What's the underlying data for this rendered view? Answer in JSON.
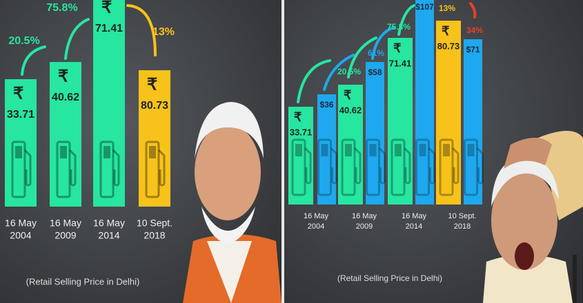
{
  "panels": [
    {
      "bars": [
        {
          "symbol": "₹",
          "price": 33.71,
          "date": [
            "16 May",
            "2004"
          ]
        },
        {
          "symbol": "₹",
          "price": 40.62,
          "date": [
            "16 May",
            "2009"
          ]
        },
        {
          "symbol": "₹",
          "price": 71.41,
          "date": [
            "16 May",
            "2014"
          ]
        },
        {
          "symbol": "₹",
          "price": 80.73,
          "date": [
            "10 Sept.",
            "2018"
          ]
        }
      ],
      "changes": [
        "20.5%",
        "75.8%",
        "13%"
      ],
      "caption": "(Retail Selling Price in Delhi)"
    },
    {
      "bars": [
        {
          "symbol": "₹",
          "price": 33.71,
          "date": [
            "16 May",
            "2004"
          ],
          "crude": "$36"
        },
        {
          "symbol": "₹",
          "price": 40.62,
          "date": [
            "16 May",
            "2009"
          ],
          "crude": "$58"
        },
        {
          "symbol": "₹",
          "price": 71.41,
          "date": [
            "16 May",
            "2014"
          ],
          "crude": "$107"
        },
        {
          "symbol": "₹",
          "price": 80.73,
          "date": [
            "10 Sept.",
            "2018"
          ],
          "crude": "$71"
        }
      ],
      "changes": [
        "20.5%",
        "61%",
        "75.8%",
        "13%",
        "34%"
      ],
      "caption": "(Retail Selling Price in Delhi)"
    }
  ]
}
